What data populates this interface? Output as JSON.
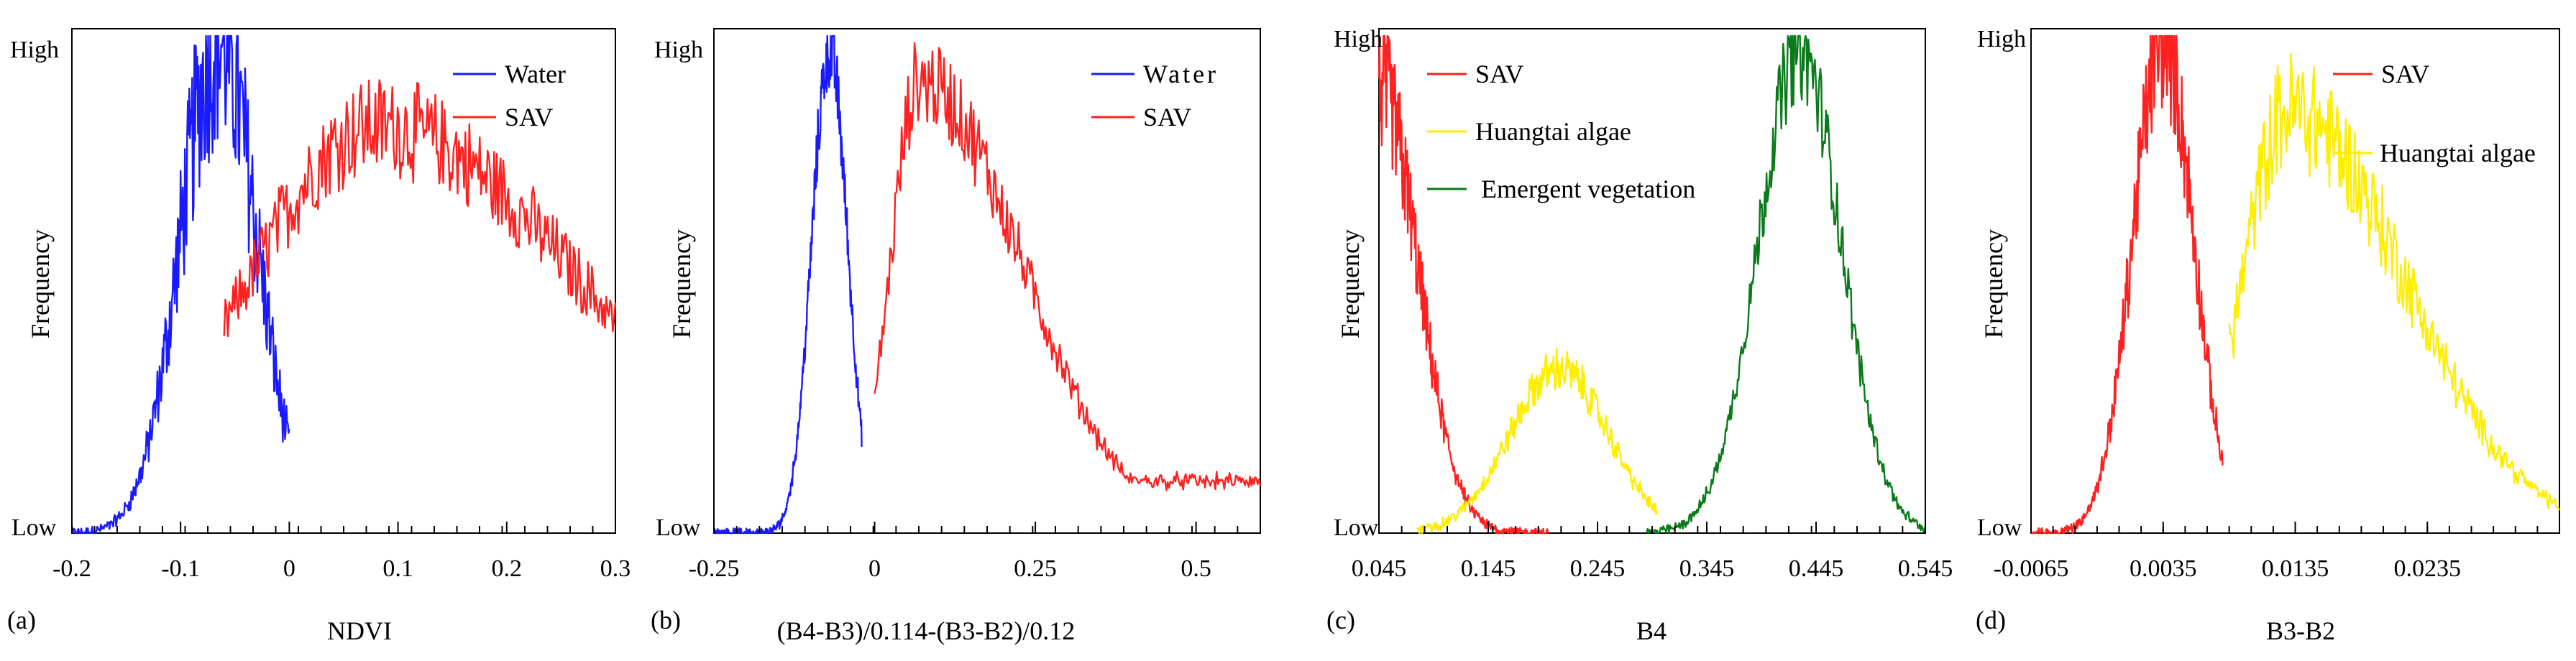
{
  "figure": {
    "description_panels": 4
  },
  "chart_data": [
    {
      "type": "line",
      "panel_label": "(a)",
      "xlabel": "NDVI",
      "ylabel": "Frequency",
      "y_top_label": "High",
      "y_bottom_label": "Low",
      "xlim": [
        -0.2,
        0.3
      ],
      "xticks": [
        -0.2,
        -0.1,
        0,
        0.1,
        0.2,
        0.3
      ],
      "xtick_labels": [
        "-0.2",
        "-0.1",
        "0",
        "0.1",
        "0.2",
        "0.3"
      ],
      "legend_position": "top-right",
      "series": [
        {
          "name": "Water",
          "color": "#1a1aff",
          "mean": -0.065,
          "sd": 0.035,
          "start": -0.2,
          "end": 0.0,
          "peak": 0.99,
          "noise": 0.22,
          "skew": 0
        },
        {
          "name": "SAV",
          "color": "#ff2020",
          "mean": 0.08,
          "sd": 0.12,
          "start": -0.06,
          "end": 0.3,
          "peak": 0.82,
          "noise": 0.12,
          "skew": 0.6
        }
      ]
    },
    {
      "type": "line",
      "panel_label": "(b)",
      "xlabel": "(B4-B3)/0.114-(B3-B2)/0.12",
      "ylabel": "Frequency",
      "y_top_label": "High",
      "y_bottom_label": "Low",
      "xlim": [
        -0.25,
        0.6
      ],
      "xticks": [
        -0.25,
        0,
        0.25,
        0.5
      ],
      "xtick_labels": [
        "-0.25",
        "0",
        "0.25",
        "0.5"
      ],
      "legend_position": "top-right",
      "series": [
        {
          "name": "Water",
          "color": "#1a1aff",
          "mean": -0.07,
          "sd": 0.028,
          "start": -0.25,
          "end": -0.02,
          "peak": 0.97,
          "noise": 0.08,
          "skew": 0
        },
        {
          "name": "SAV",
          "color": "#ff2020",
          "mean": 0.07,
          "sd": 0.045,
          "start": 0.0,
          "end": 0.6,
          "peak": 0.91,
          "noise": 0.1,
          "skew": 2.5,
          "tail": 0.12
        }
      ]
    },
    {
      "type": "line",
      "panel_label": "(c)",
      "xlabel": "B4",
      "ylabel": "Frequency",
      "y_top_label": "High",
      "y_bottom_label": "Low",
      "xlim": [
        0.045,
        0.545
      ],
      "xticks": [
        0.045,
        0.145,
        0.245,
        0.345,
        0.445,
        0.545
      ],
      "xtick_labels": [
        "0.045",
        "0.145",
        "0.245",
        "0.345",
        "0.445",
        "0.545"
      ],
      "legend_position": "top-left",
      "series": [
        {
          "name": "SAV",
          "color": "#ff2020",
          "mean": 0.045,
          "sd": 0.035,
          "start": 0.045,
          "end": 0.2,
          "peak": 0.9,
          "noise": 0.15,
          "skew": 0
        },
        {
          "name": "Huangtai algae",
          "color": "#ffee00",
          "mean": 0.21,
          "sd": 0.045,
          "start": 0.08,
          "end": 0.3,
          "peak": 0.33,
          "noise": 0.12,
          "skew": 0
        },
        {
          "name": "Emergent vegetation",
          "color": "#0a7a1a",
          "mean": 0.43,
          "sd": 0.038,
          "start": 0.29,
          "end": 0.545,
          "peak": 0.97,
          "noise": 0.1,
          "skew": 0
        }
      ]
    },
    {
      "type": "line",
      "panel_label": "(d)",
      "xlabel": "B3-B2",
      "ylabel": "Frequency",
      "y_top_label": "High",
      "y_bottom_label": "Low",
      "xlim": [
        -0.0065,
        0.0335
      ],
      "xticks": [
        -0.0065,
        0.0035,
        0.0135,
        0.0235
      ],
      "xtick_labels": [
        "-0.0065",
        "0.0035",
        "0.0135",
        "0.0235"
      ],
      "legend_position": "top-right",
      "series": [
        {
          "name": "SAV",
          "color": "#ff2020",
          "mean": 0.0035,
          "sd": 0.0023,
          "start": -0.0065,
          "end": 0.008,
          "peak": 0.99,
          "noise": 0.14,
          "skew": 0
        },
        {
          "name": "Huangtai algae",
          "color": "#ffee00",
          "mean": 0.013,
          "sd": 0.0035,
          "start": 0.0085,
          "end": 0.0335,
          "peak": 0.85,
          "noise": 0.14,
          "skew": 1.5
        }
      ]
    }
  ]
}
